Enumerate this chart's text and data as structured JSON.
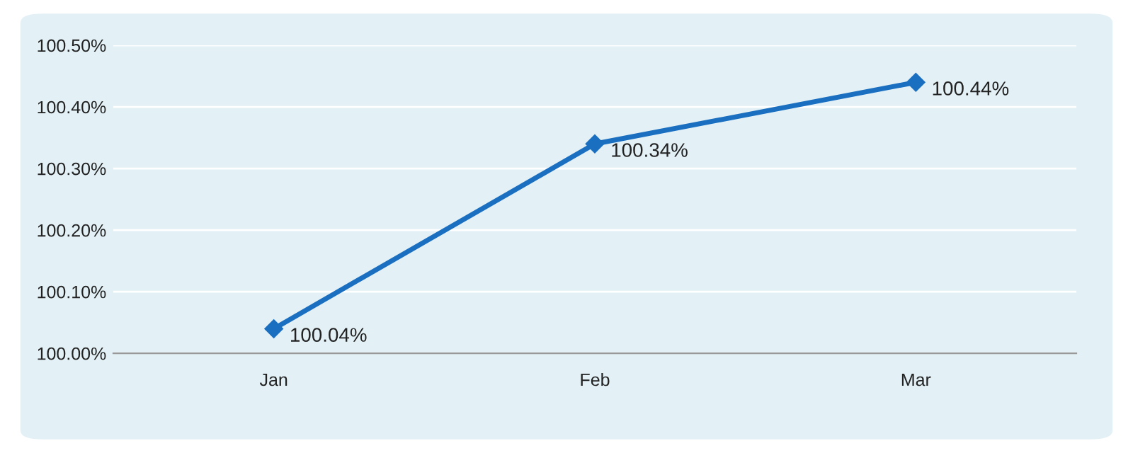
{
  "chart_data": {
    "type": "line",
    "categories": [
      "Jan",
      "Feb",
      "Mar"
    ],
    "series": [
      {
        "color": "#1a6fc0",
        "values": [
          100.04,
          100.34,
          100.44
        ],
        "value_labels": [
          "100.04%",
          "100.34%",
          "100.44%"
        ]
      }
    ],
    "ylim": [
      100.0,
      100.5
    ],
    "yticks": [
      {
        "value": 100.0,
        "label": "100.00%"
      },
      {
        "value": 100.1,
        "label": "100.10%"
      },
      {
        "value": 100.2,
        "label": "100.20%"
      },
      {
        "value": 100.3,
        "label": "100.30%"
      },
      {
        "value": 100.4,
        "label": "100.40%"
      },
      {
        "value": 100.5,
        "label": "100.50%"
      }
    ],
    "grid": "y",
    "marker": "diamond",
    "line_style": "solid"
  }
}
